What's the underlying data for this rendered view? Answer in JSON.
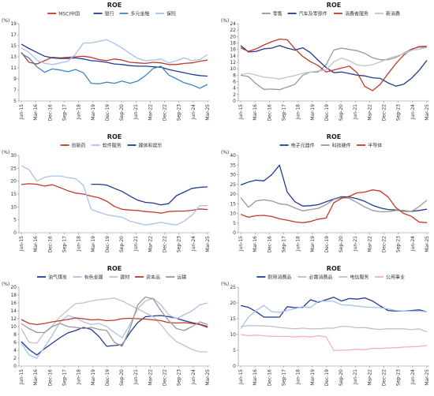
{
  "chart_data": [
    {
      "type": "line",
      "title": "ROE",
      "ylabel": "(%)",
      "ylim": [
        5,
        19
      ],
      "yticks": [
        5,
        7,
        9,
        11,
        13,
        15,
        17,
        19
      ],
      "x_labels": [
        "Jun-15",
        "Mar-16",
        "Dec-16",
        "Sep-17",
        "Jun-18",
        "Mar-19",
        "Dec-19",
        "Sep-20",
        "Jun-21",
        "Mar-22",
        "Dec-22",
        "Sep-23",
        "Jun-24",
        "Mar-25"
      ],
      "legend_position": "top",
      "series": [
        {
          "name": "MSCI中国",
          "color": "#c0392b",
          "values": [
            13.8,
            12.0,
            11.7,
            12.3,
            12.9,
            12.8,
            12.9,
            13.0,
            13.1,
            12.9,
            12.5,
            12.3,
            12.6,
            12.4,
            12.0,
            11.9,
            11.8,
            12.0,
            11.9,
            11.6,
            11.6,
            11.8,
            11.9,
            12.2,
            12.4
          ]
        },
        {
          "name": "银行",
          "color": "#1f3a93",
          "values": [
            15.3,
            14.5,
            13.8,
            13.1,
            12.8,
            12.7,
            12.7,
            12.8,
            12.6,
            12.3,
            12.2,
            12.0,
            11.7,
            11.6,
            11.4,
            11.3,
            11.3,
            11.2,
            11.1,
            10.7,
            10.4,
            10.1,
            9.8,
            9.6,
            9.5
          ]
        },
        {
          "name": "多元金融",
          "color": "#3d85c6",
          "values": [
            13.6,
            12.8,
            11.2,
            10.2,
            10.8,
            10.6,
            10.3,
            10.7,
            10.1,
            8.2,
            8.1,
            8.4,
            8.2,
            8.6,
            8.2,
            8.6,
            9.6,
            10.9,
            11.3,
            9.7,
            9.0,
            8.3,
            7.9,
            7.3,
            8.0
          ]
        },
        {
          "name": "保险",
          "color": "#a9c2e8",
          "values": [
            14.6,
            13.8,
            12.4,
            11.8,
            11.6,
            11.9,
            12.2,
            13.5,
            15.5,
            15.5,
            15.8,
            16.1,
            15.4,
            14.6,
            13.6,
            12.7,
            12.3,
            12.4,
            12.6,
            11.9,
            12.3,
            12.8,
            12.3,
            12.5,
            13.4
          ]
        }
      ]
    },
    {
      "type": "line",
      "title": "ROE",
      "ylabel": "(%)",
      "ylim": [
        0,
        24
      ],
      "yticks": [
        0,
        2,
        4,
        6,
        8,
        10,
        12,
        14,
        16,
        18,
        20,
        22,
        24
      ],
      "x_labels": [
        "Jun-15",
        "Mar-16",
        "Dec-16",
        "Sep-17",
        "Jun-18",
        "Mar-19",
        "Dec-19",
        "Sep-20",
        "Jun-21",
        "Mar-22",
        "Dec-22",
        "Sep-23",
        "Jun-24",
        "Mar-25"
      ],
      "legend_position": "top",
      "series": [
        {
          "name": "零售",
          "color": "#999999",
          "values": [
            8.0,
            7.6,
            5.3,
            3.6,
            3.7,
            3.5,
            4.3,
            5.2,
            8.0,
            9.0,
            9.0,
            11.2,
            15.8,
            16.4,
            16.0,
            15.6,
            14.8,
            13.4,
            12.8,
            12.8,
            13.5,
            14.8,
            16.1,
            16.7,
            16.7
          ]
        },
        {
          "name": "汽车及零部件",
          "color": "#1f3a93",
          "values": [
            17.2,
            15.2,
            15.4,
            16.2,
            16.4,
            17.2,
            16.4,
            15.8,
            16.5,
            15.0,
            12.6,
            10.4,
            8.8,
            9.0,
            8.5,
            8.0,
            7.8,
            7.2,
            7.0,
            5.6,
            4.6,
            5.2,
            7.0,
            9.5,
            12.6
          ]
        },
        {
          "name": "消费者服务",
          "color": "#c0392b",
          "values": [
            16.5,
            15.4,
            16.2,
            17.4,
            18.4,
            19.2,
            19.0,
            16.2,
            13.8,
            12.2,
            11.0,
            9.0,
            9.6,
            10.2,
            10.8,
            8.8,
            4.5,
            3.2,
            5.2,
            8.5,
            11.6,
            14.2,
            16.0,
            16.9,
            17.0
          ]
        },
        {
          "name": "新消费",
          "color": "#bfc3c9",
          "values": [
            8.2,
            8.6,
            8.0,
            7.4,
            7.2,
            6.8,
            7.4,
            7.9,
            8.6,
            9.0,
            9.3,
            9.6,
            12.1,
            13.3,
            12.5,
            11.2,
            10.9,
            11.3,
            12.1,
            13.2,
            13.9,
            14.6,
            15.7,
            16.1,
            16.6
          ]
        }
      ]
    },
    {
      "type": "line",
      "title": "ROE",
      "ylabel": "(%)",
      "ylim": [
        0,
        30
      ],
      "yticks": [
        0,
        5,
        10,
        15,
        20,
        25,
        30
      ],
      "x_labels": [
        "Jun-15",
        "Mar-16",
        "Dec-16",
        "Sep-17",
        "Jun-18",
        "Mar-19",
        "Dec-19",
        "Sep-20",
        "Jun-21",
        "Mar-22",
        "Dec-22",
        "Sep-23",
        "Jun-24",
        "Mar-25"
      ],
      "legend_position": "top",
      "series": [
        {
          "name": "创新药",
          "color": "#c0392b",
          "values": [
            18.7,
            19.0,
            18.8,
            18.1,
            18.6,
            17.5,
            16.3,
            15.4,
            15.0,
            14.2,
            13.6,
            12.2,
            10.2,
            9.1,
            8.8,
            8.6,
            8.2,
            8.0,
            7.6,
            8.2,
            8.4,
            8.4,
            8.7,
            9.2,
            9.0
          ]
        },
        {
          "name": "软件服务",
          "color": "#a9c2e8",
          "values": [
            26.0,
            24.5,
            20.0,
            21.5,
            22.0,
            22.0,
            21.4,
            21.0,
            18.4,
            9.0,
            8.0,
            7.0,
            6.5,
            6.0,
            4.5,
            3.7,
            3.0,
            3.5,
            4.0,
            3.4,
            3.0,
            4.5,
            6.8,
            10.5,
            10.5
          ]
        },
        {
          "name": "媒体和娱乐",
          "color": "#1f3a93",
          "values": [
            null,
            null,
            null,
            null,
            null,
            null,
            null,
            null,
            null,
            18.8,
            18.8,
            18.5,
            17.2,
            16.0,
            14.2,
            12.6,
            11.8,
            11.5,
            10.8,
            11.3,
            14.4,
            15.8,
            17.2,
            17.6,
            17.8
          ]
        }
      ]
    },
    {
      "type": "line",
      "title": "ROE",
      "ylabel": "(%)",
      "ylim": [
        0,
        40
      ],
      "yticks": [
        0,
        5,
        10,
        15,
        20,
        25,
        30,
        35,
        40
      ],
      "x_labels": [
        "Jun-15",
        "Mar-16",
        "Dec-16",
        "Sep-17",
        "Jun-18",
        "Mar-19",
        "Dec-19",
        "Sep-20",
        "Jun-21",
        "Mar-22",
        "Dec-22",
        "Sep-23",
        "Jun-24",
        "Mar-25"
      ],
      "legend_position": "top",
      "series": [
        {
          "name": "电子元器件",
          "color": "#1f3a93",
          "values": [
            24.7,
            26.2,
            27.2,
            26.8,
            30.0,
            35.0,
            21.0,
            16.0,
            13.8,
            14.0,
            14.5,
            16.0,
            17.4,
            18.6,
            18.5,
            17.6,
            16.2,
            14.2,
            12.8,
            12.0,
            11.8,
            11.2,
            11.0,
            11.5,
            12.2
          ]
        },
        {
          "name": "科技硬件",
          "color": "#999999",
          "values": [
            18.2,
            13.2,
            16.5,
            17.0,
            16.4,
            15.0,
            14.5,
            12.8,
            11.3,
            12.0,
            12.6,
            14.5,
            17.2,
            18.2,
            17.8,
            15.6,
            13.3,
            11.5,
            10.8,
            10.9,
            11.5,
            11.5,
            11.0,
            13.5,
            16.8
          ]
        },
        {
          "name": "半导体",
          "color": "#c0392b",
          "values": [
            9.5,
            8.0,
            8.8,
            9.0,
            8.4,
            7.2,
            6.5,
            5.6,
            5.2,
            5.8,
            7.0,
            7.6,
            15.5,
            17.8,
            18.8,
            20.6,
            21.0,
            22.2,
            21.5,
            18.5,
            13.0,
            10.0,
            8.5,
            5.5,
            5.2
          ]
        }
      ]
    },
    {
      "type": "line",
      "title": "ROE",
      "ylabel": "(%)",
      "ylim": [
        0,
        20
      ],
      "yticks": [
        0,
        2,
        4,
        6,
        8,
        10,
        12,
        14,
        16,
        18,
        20
      ],
      "x_labels": [
        "Jun-15",
        "Mar-16",
        "Dec-16",
        "Sep-17",
        "Jun-18",
        "Mar-19",
        "Dec-19",
        "Sep-20",
        "Jun-21",
        "Mar-22",
        "Dec-22",
        "Sep-23",
        "Jun-24",
        "Mar-25"
      ],
      "legend_position": "top",
      "series": [
        {
          "name": "油气煤炭",
          "color": "#1f3a93",
          "values": [
            6.2,
            4.2,
            2.8,
            4.4,
            5.8,
            7.2,
            8.4,
            9.0,
            9.8,
            9.3,
            7.5,
            5.0,
            5.2,
            5.4,
            8.5,
            11.0,
            12.5,
            12.7,
            12.8,
            12.5,
            12.1,
            11.5,
            11.0,
            10.6,
            10.0
          ]
        },
        {
          "name": "有色金属",
          "color": "#a9c2e8",
          "values": [
            5.8,
            2.8,
            2.0,
            4.8,
            7.8,
            11.2,
            12.8,
            12.2,
            11.2,
            10.5,
            10.8,
            10.0,
            8.5,
            7.2,
            10.5,
            14.5,
            16.5,
            17.2,
            15.5,
            13.0,
            12.0,
            13.0,
            14.0,
            15.5,
            16.0
          ]
        },
        {
          "name": "建材",
          "color": "#bfc3c9",
          "values": [
            9.5,
            6.0,
            5.8,
            8.5,
            10.2,
            12.5,
            14.2,
            15.8,
            16.0,
            16.5,
            16.8,
            17.0,
            17.2,
            16.5,
            15.5,
            14.5,
            13.5,
            12.5,
            10.5,
            8.0,
            6.2,
            5.2,
            4.2,
            3.6,
            3.6
          ]
        },
        {
          "name": "资本品",
          "color": "#c0392b",
          "values": [
            11.8,
            10.8,
            10.5,
            10.8,
            11.2,
            11.5,
            11.8,
            12.2,
            12.0,
            11.7,
            11.8,
            11.5,
            11.6,
            12.0,
            12.1,
            12.0,
            11.9,
            11.7,
            11.5,
            11.0,
            10.9,
            11.0,
            10.8,
            10.5,
            9.8
          ]
        },
        {
          "name": "运输",
          "color": "#999999",
          "values": [
            10.8,
            9.5,
            8.5,
            8.5,
            10.0,
            10.8,
            10.0,
            9.8,
            9.5,
            9.8,
            9.3,
            9.0,
            6.0,
            5.0,
            9.5,
            15.5,
            17.5,
            17.0,
            14.0,
            11.5,
            9.5,
            9.0,
            10.0,
            11.2,
            10.5
          ]
        }
      ]
    },
    {
      "type": "line",
      "title": "ROE",
      "ylabel": "(%)",
      "ylim": [
        0,
        25
      ],
      "yticks": [
        0,
        5,
        10,
        15,
        20,
        25
      ],
      "x_labels": [
        "Jun-15",
        "Mar-16",
        "Dec-16",
        "Sep-17",
        "Jun-18",
        "Mar-19",
        "Dec-19",
        "Sep-20",
        "Jun-21",
        "Mar-22",
        "Dec-22",
        "Sep-23",
        "Jun-24",
        "Mar-25"
      ],
      "legend_position": "top",
      "series": [
        {
          "name": "耐用消费品",
          "color": "#1f3a93",
          "values": [
            19.2,
            18.6,
            17.2,
            15.5,
            15.5,
            15.5,
            18.8,
            18.5,
            18.6,
            21.0,
            20.2,
            21.0,
            21.8,
            20.6,
            21.4,
            21.2,
            21.6,
            20.6,
            19.0,
            17.6,
            17.4,
            17.4,
            17.6,
            17.8,
            17.2
          ]
        },
        {
          "name": "必需消费品",
          "color": "#a9c2e8",
          "values": [
            11.8,
            15.5,
            17.6,
            19.2,
            17.2,
            17.0,
            17.6,
            18.2,
            18.8,
            18.5,
            20.5,
            20.6,
            20.5,
            19.4,
            19.3,
            19.0,
            18.7,
            18.6,
            18.5,
            18.1,
            17.6,
            17.4,
            17.4,
            17.4,
            17.2
          ]
        },
        {
          "name": "电信服务",
          "color": "#bfc3c9",
          "values": [
            12.5,
            12.8,
            12.8,
            12.7,
            12.6,
            12.2,
            12.0,
            11.8,
            12.0,
            11.8,
            11.8,
            12.0,
            12.0,
            12.6,
            12.5,
            12.1,
            12.2,
            11.8,
            11.6,
            11.8,
            11.8,
            11.8,
            11.5,
            11.8,
            10.8
          ]
        },
        {
          "name": "公用事业",
          "color": "#f0b3b3",
          "values": [
            10.0,
            9.6,
            9.8,
            9.6,
            9.4,
            9.4,
            9.4,
            9.2,
            9.4,
            9.2,
            9.6,
            9.2,
            4.9,
            5.0,
            5.1,
            5.3,
            5.2,
            5.6,
            5.6,
            5.7,
            5.8,
            6.0,
            6.1,
            6.2,
            6.5
          ]
        }
      ]
    }
  ]
}
